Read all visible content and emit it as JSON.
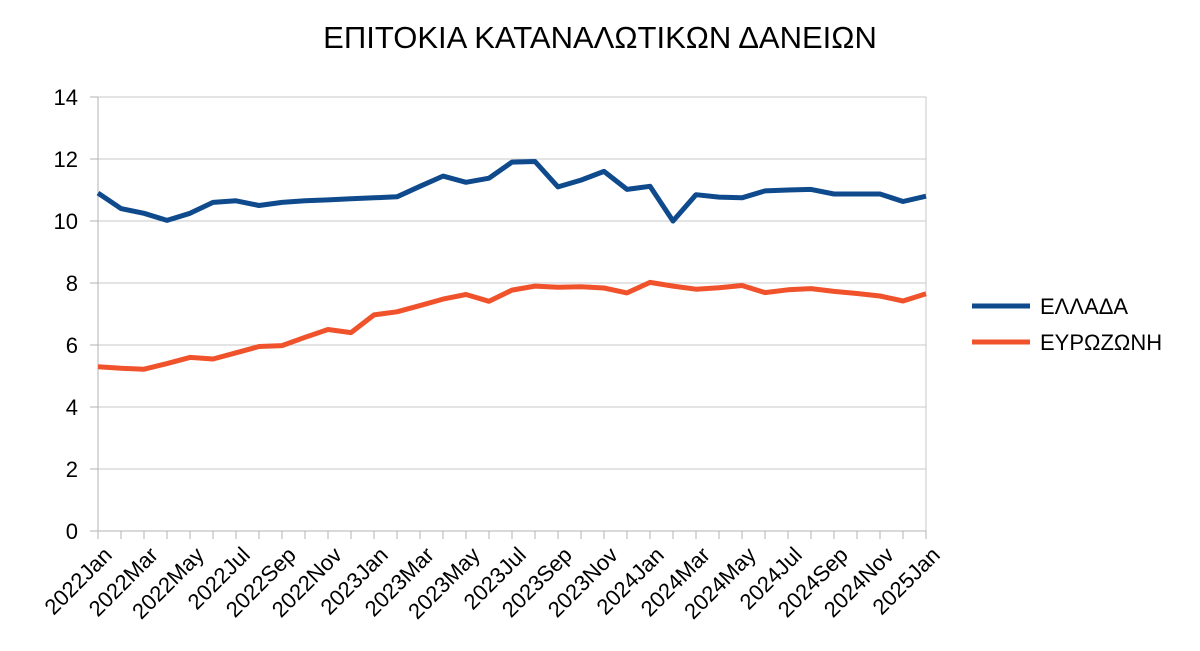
{
  "chart_data": {
    "type": "line",
    "title": "ΕΠΙΤΟΚΙΑ ΚΑΤΑΝΑΛΩΤΙΚΩΝ ΔΑΝΕΙΩΝ",
    "xlabel": "",
    "ylabel": "",
    "ylim": [
      0,
      14
    ],
    "yticks": [
      0,
      2,
      4,
      6,
      8,
      10,
      12,
      14
    ],
    "grid": true,
    "legend_position": "right",
    "x": [
      "2022Jan",
      "2022Feb",
      "2022Mar",
      "2022Apr",
      "2022May",
      "2022Jun",
      "2022Jul",
      "2022Aug",
      "2022Sep",
      "2022Oct",
      "2022Nov",
      "2022Dec",
      "2023Jan",
      "2023Feb",
      "2023Mar",
      "2023Apr",
      "2023May",
      "2023Jun",
      "2023Jul",
      "2023Aug",
      "2023Sep",
      "2023Oct",
      "2023Nov",
      "2023Dec",
      "2024Jan",
      "2024Feb",
      "2024Mar",
      "2024Apr",
      "2024May",
      "2024Jun",
      "2024Jul",
      "2024Aug",
      "2024Sep",
      "2024Oct",
      "2024Nov",
      "2024Dec",
      "2025Jan"
    ],
    "x_tick_labels": [
      "2022Jan",
      "2022Mar",
      "2022May",
      "2022Jul",
      "2022Sep",
      "2022Nov",
      "2023Jan",
      "2023Mar",
      "2023May",
      "2023Jul",
      "2023Sep",
      "2023Nov",
      "2024Jan",
      "2024Mar",
      "2024May",
      "2024Jul",
      "2024Sep",
      "2024Nov",
      "2025Jan"
    ],
    "series": [
      {
        "name": "ΕΛΛΑΔΑ",
        "color": "#0e4a8c",
        "values": [
          10.9,
          10.4,
          10.25,
          10.02,
          10.25,
          10.6,
          10.65,
          10.5,
          10.6,
          10.65,
          10.68,
          10.72,
          10.75,
          10.78,
          11.12,
          11.45,
          11.25,
          11.38,
          11.9,
          11.92,
          11.1,
          11.32,
          11.6,
          11.02,
          11.12,
          10.0,
          10.85,
          10.77,
          10.75,
          10.97,
          11.0,
          11.02,
          10.87,
          10.87,
          10.87,
          10.63,
          10.8
        ]
      },
      {
        "name": "ΕΥΡΩΖΩΝΗ",
        "color": "#f0532b",
        "values": [
          5.3,
          5.25,
          5.22,
          5.4,
          5.6,
          5.55,
          5.75,
          5.95,
          5.98,
          6.25,
          6.5,
          6.4,
          6.97,
          7.07,
          7.27,
          7.48,
          7.63,
          7.41,
          7.77,
          7.9,
          7.86,
          7.88,
          7.84,
          7.68,
          8.02,
          7.9,
          7.8,
          7.85,
          7.92,
          7.69,
          7.78,
          7.82,
          7.73,
          7.66,
          7.58,
          7.42,
          7.65
        ]
      }
    ]
  }
}
